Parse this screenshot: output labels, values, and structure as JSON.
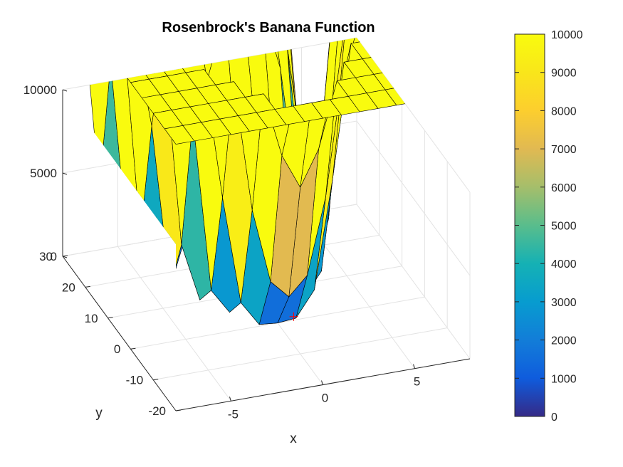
{
  "chart_data": {
    "type": "surface",
    "title": "Rosenbrock's Banana Function",
    "xlabel": "x",
    "ylabel": "y",
    "zlabel": "",
    "function": "f(x,y) = 100*(y - x^2)^2 + (1 - x)^2",
    "xlim": [
      -8,
      8
    ],
    "ylim": [
      -20,
      30
    ],
    "zlim": [
      0,
      10000
    ],
    "clim": [
      0,
      10000
    ],
    "x_grid": [
      -8,
      -7,
      -6,
      -5,
      -4,
      -3,
      -2,
      -1,
      0,
      1,
      2,
      3,
      4,
      5,
      6,
      7,
      8
    ],
    "y_grid": [
      -20,
      -15,
      -10,
      -5,
      0,
      5,
      10,
      15,
      20,
      25,
      30
    ],
    "x_ticks": [
      -5,
      0,
      5
    ],
    "x_tick_labels": [
      "-5",
      "0",
      "5"
    ],
    "y_ticks": [
      -20,
      -10,
      0,
      10,
      20,
      30
    ],
    "y_tick_labels": [
      "-20",
      "-10",
      "0",
      "10",
      "20",
      "30"
    ],
    "z_ticks": [
      0,
      5000,
      10000
    ],
    "z_tick_labels": [
      "0",
      "5000",
      "10000"
    ],
    "minimum_marker": {
      "x": 1,
      "y": 1,
      "z": 0,
      "marker": "+",
      "color": "#ff0000"
    },
    "colormap": "parula",
    "colorbar": {
      "location": "right",
      "ticks": [
        0,
        1000,
        2000,
        3000,
        4000,
        5000,
        6000,
        7000,
        8000,
        9000,
        10000
      ],
      "tick_labels": [
        "0",
        "1000",
        "2000",
        "3000",
        "4000",
        "5000",
        "6000",
        "7000",
        "8000",
        "9000",
        "10000"
      ]
    },
    "grid": true,
    "view": "3d-perspective"
  }
}
